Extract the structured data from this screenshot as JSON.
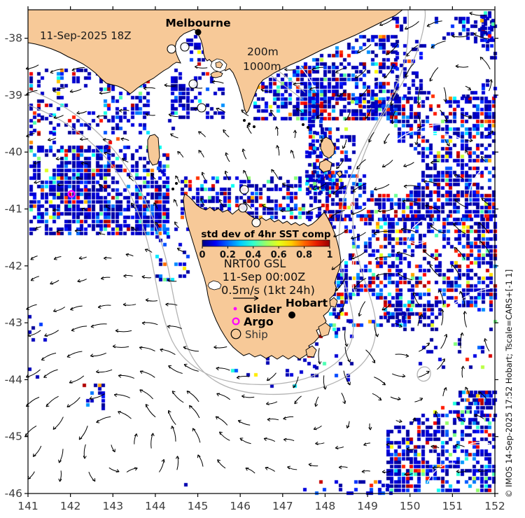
{
  "map": {
    "datetime_label": "11-Sep-2025 18Z",
    "depth_labels": [
      "200m",
      "1000m"
    ],
    "cities": [
      {
        "name": "Melbourne"
      },
      {
        "name": "Hobart"
      }
    ],
    "copyright": "© IMOS 14-Sep-2025 17:52 Hobart; Tscale=CARS+[-1 1]"
  },
  "axes": {
    "x_ticks": [
      "141",
      "142",
      "143",
      "144",
      "145",
      "146",
      "147",
      "148",
      "149",
      "150",
      "151",
      "152"
    ],
    "y_ticks": [
      "-38",
      "-39",
      "-40",
      "-41",
      "-42",
      "-43",
      "-44",
      "-45",
      "-46"
    ]
  },
  "colorbar": {
    "title": "std dev of 4hr SST comp",
    "tick_labels": [
      "0",
      "0.2",
      "0.4",
      "0.6",
      "0.8",
      "1"
    ],
    "gradient": [
      "#000080",
      "#0000f5",
      "#0066ff",
      "#00ccff",
      "#33ffcc",
      "#99ff66",
      "#e6ff1a",
      "#ffcc00",
      "#ff6600",
      "#e61a00",
      "#990000"
    ]
  },
  "run_info": {
    "model": "NRT00 GSL",
    "valid_time": "11-Sep 00:00Z",
    "vector_scale": "0.5m/s (1kt 24h)"
  },
  "marker_legend": {
    "items": [
      {
        "label": "Glider",
        "marker": "magenta-dot"
      },
      {
        "label": "Argo",
        "marker": "magenta-open-circle"
      },
      {
        "label": "Ship",
        "marker": "black-open-circle"
      }
    ]
  },
  "colors": {
    "land": "#f7c998",
    "sea": "#ffffff",
    "magenta": "#ff00ff",
    "arrow": "#000000",
    "contour_gray": "#b3b3b3",
    "contour_white": "#ffffff",
    "axis_text": "#3d3d3d"
  }
}
